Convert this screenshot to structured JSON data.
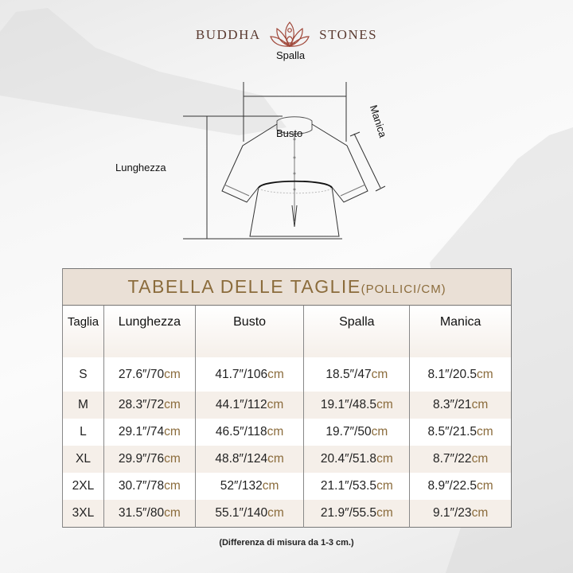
{
  "brand": {
    "left": "BUDDHA",
    "right": "STONES",
    "logo_icon": "lotus-meditation-icon",
    "color": "#5a3a30"
  },
  "diagram": {
    "shoulder": "Spalla",
    "sleeve": "Manica",
    "chest": "Busto",
    "length": "Lunghezza"
  },
  "table": {
    "title": "TABELLA DELLE TAGLIE",
    "title_unit": "(POLLICI/CM)",
    "accent_color": "#8b6c3c",
    "headers": [
      "Taglia",
      "Lunghezza",
      "Busto",
      "Spalla",
      "Manica"
    ],
    "rows": [
      {
        "size": "S",
        "cells": [
          {
            "v": "27.6″/70",
            "u": "cm"
          },
          {
            "v": "41.7″/106",
            "u": "cm"
          },
          {
            "v": "18.5″/47",
            "u": "cm"
          },
          {
            "v": "8.1″/20.5",
            "u": "cm"
          }
        ]
      },
      {
        "size": "M",
        "cells": [
          {
            "v": "28.3″/72",
            "u": "cm"
          },
          {
            "v": "44.1″/112",
            "u": "cm"
          },
          {
            "v": "19.1″/48.5",
            "u": "cm"
          },
          {
            "v": "8.3″/21",
            "u": "cm"
          }
        ]
      },
      {
        "size": "L",
        "cells": [
          {
            "v": "29.1″/74",
            "u": "cm"
          },
          {
            "v": "46.5″/118",
            "u": "cm"
          },
          {
            "v": "19.7″/50",
            "u": "cm"
          },
          {
            "v": "8.5″/21.5",
            "u": "cm"
          }
        ]
      },
      {
        "size": "XL",
        "cells": [
          {
            "v": "29.9″/76",
            "u": "cm"
          },
          {
            "v": "48.8″/124",
            "u": "cm"
          },
          {
            "v": "20.4″/51.8",
            "u": "cm"
          },
          {
            "v": "8.7″/22",
            "u": "cm"
          }
        ]
      },
      {
        "size": "2XL",
        "cells": [
          {
            "v": "30.7″/78",
            "u": "cm"
          },
          {
            "v": "52″/132",
            "u": "cm"
          },
          {
            "v": "21.1″/53.5",
            "u": "cm"
          },
          {
            "v": "8.9″/22.5",
            "u": "cm"
          }
        ]
      },
      {
        "size": "3XL",
        "cells": [
          {
            "v": "31.5″/80",
            "u": "cm"
          },
          {
            "v": "55.1″/140",
            "u": "cm"
          },
          {
            "v": "21.9″/55.5",
            "u": "cm"
          },
          {
            "v": "9.1″/23",
            "u": "cm"
          }
        ]
      }
    ]
  },
  "note": "(Differenza di misura da 1-3 cm.)"
}
